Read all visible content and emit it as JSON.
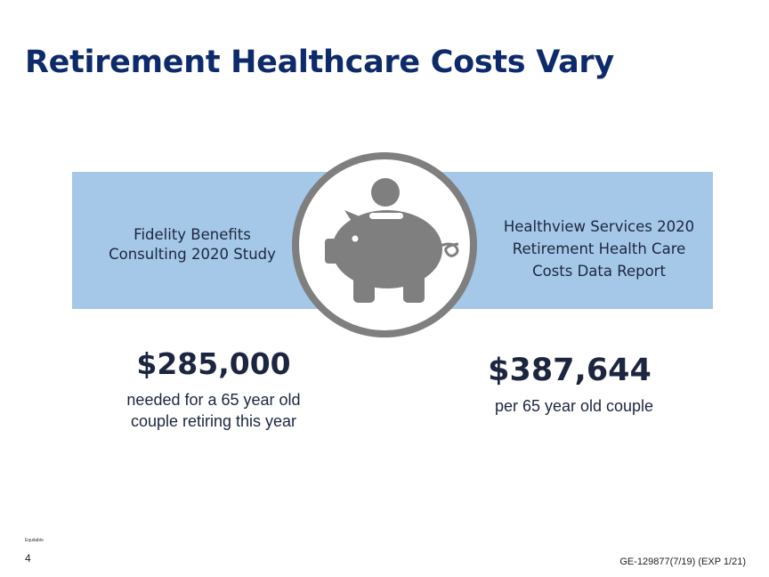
{
  "slide": {
    "title": "Retirement Healthcare Costs Vary",
    "left": {
      "source_lines": [
        "Fidelity Benefits",
        "Consulting 2020 Study"
      ],
      "amount": "$285,000",
      "description_lines": [
        "needed for a 65 year old",
        "couple retiring this year"
      ]
    },
    "right": {
      "source_lines": [
        "Healthview Services 2020",
        "Retirement Health Care",
        "Costs Data Report"
      ],
      "amount": "$387,644",
      "description_lines": [
        "per 65 year old couple"
      ]
    },
    "emblem": {
      "icon": "piggy-bank-with-coin-icon"
    },
    "footer": {
      "logo_text": "Equitable",
      "page_number": "4",
      "document_code": "GE-129877(7/19) (EXP 1/21)"
    }
  },
  "colors": {
    "title": "#0d2b6b",
    "band": "#a5c8e8",
    "emblem": "#7f7f7f",
    "text": "#1c2640"
  }
}
